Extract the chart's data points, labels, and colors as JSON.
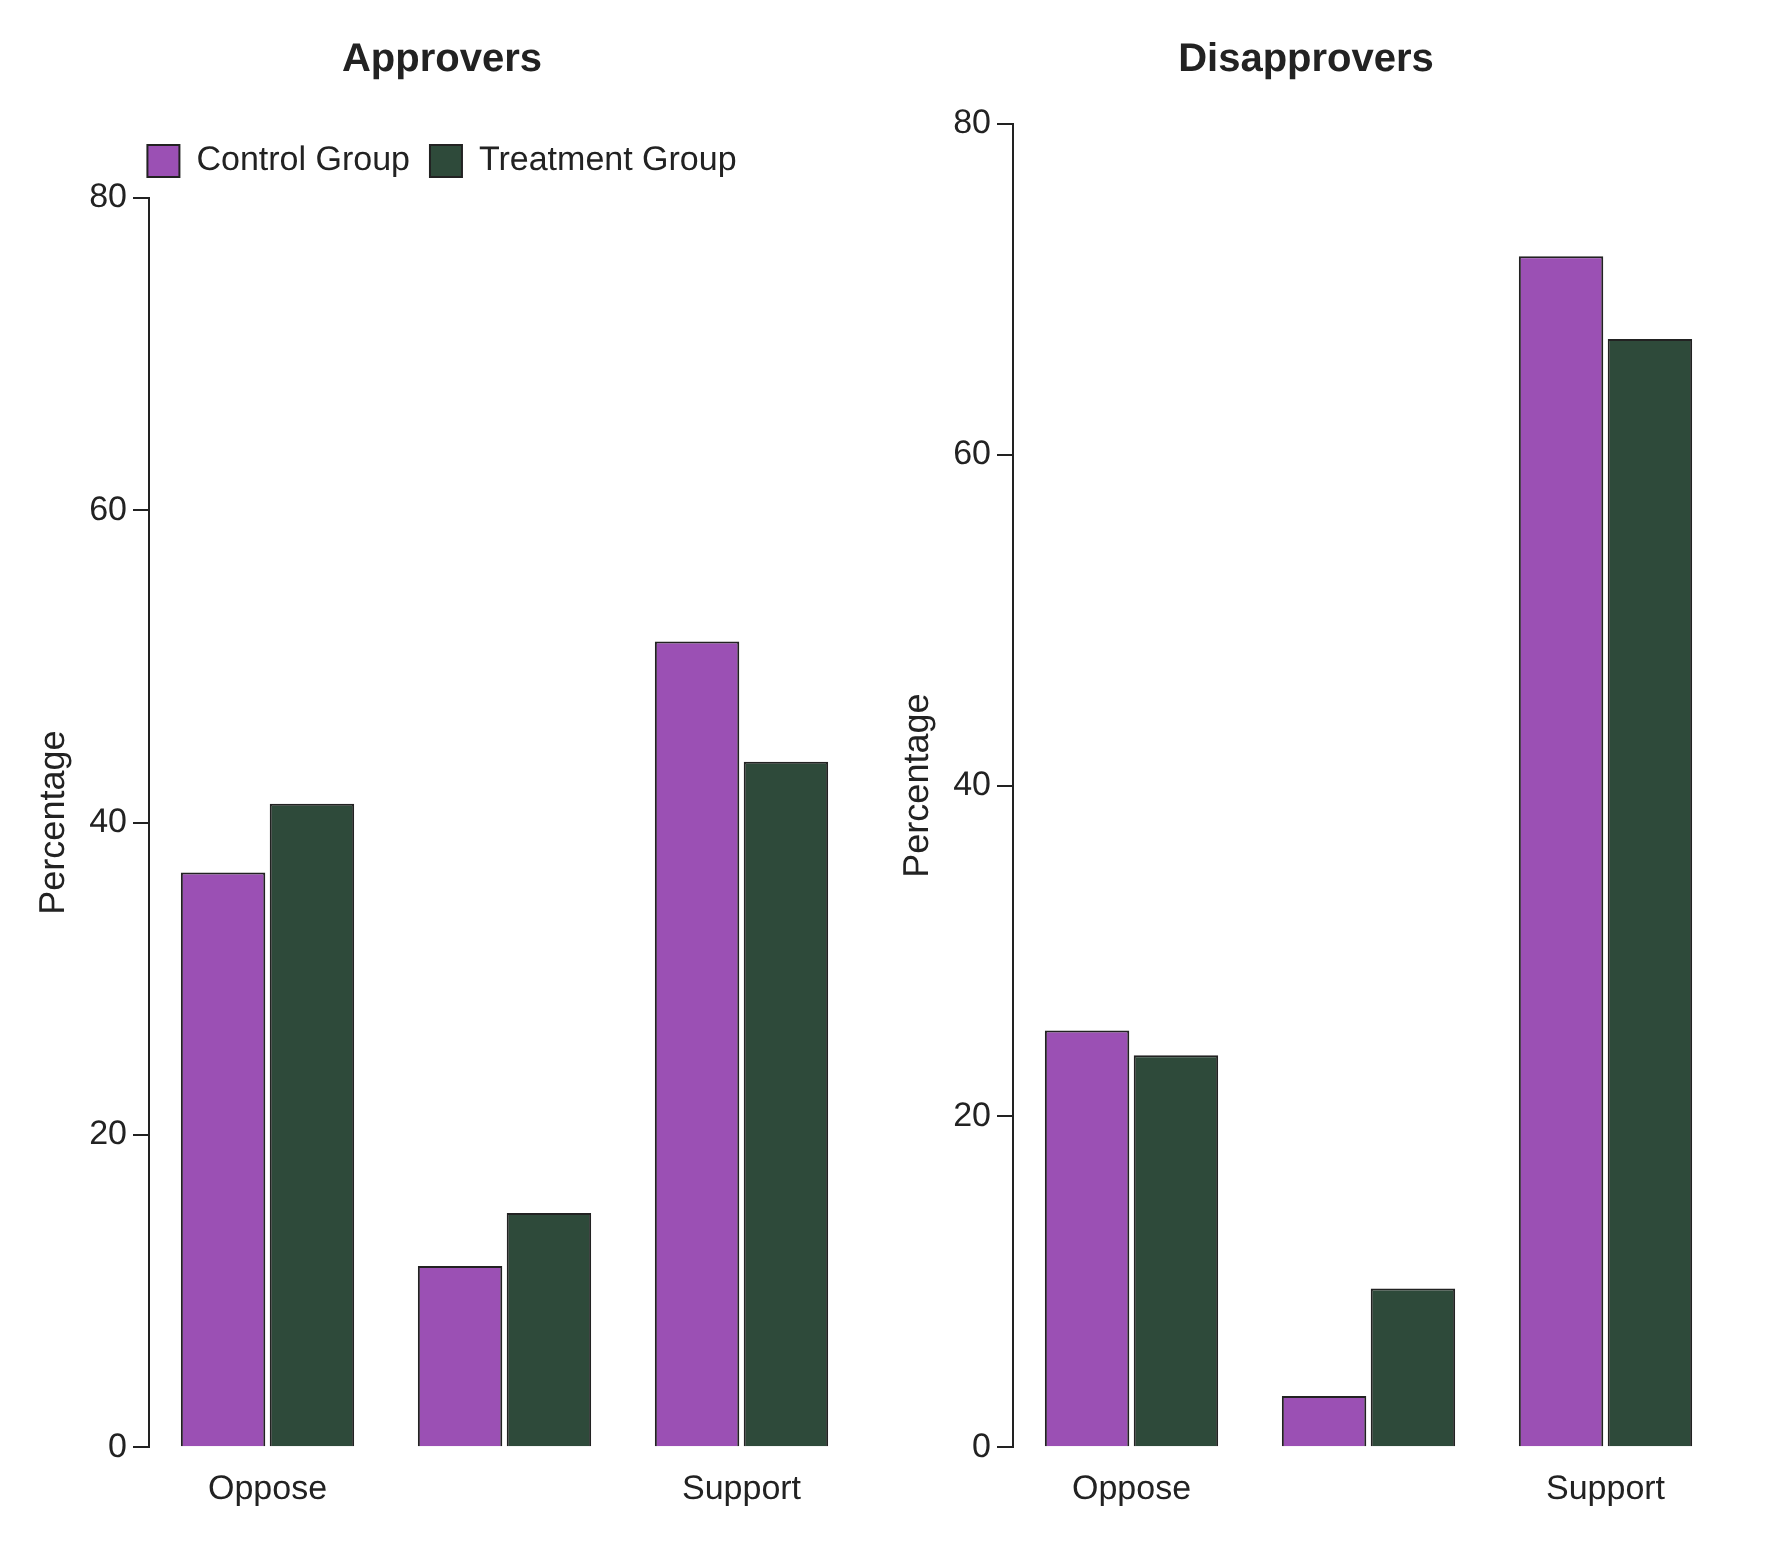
{
  "chart_data": [
    {
      "type": "bar",
      "title": "Approvers",
      "ylabel": "Percentage",
      "categories": [
        "Oppose",
        null,
        "Support"
      ],
      "ylim": [
        0,
        80
      ],
      "yticks": [
        0,
        20,
        40,
        60,
        80
      ],
      "grid": false,
      "legend": "top",
      "series": [
        {
          "name": "Control Group",
          "color": "#9b50b4",
          "values": [
            36.8,
            11.6,
            51.6
          ]
        },
        {
          "name": "Treatment Group",
          "color": "#2e4a3a",
          "values": [
            41.2,
            15.0,
            43.9
          ]
        }
      ]
    },
    {
      "type": "bar",
      "title": "Disapprovers",
      "ylabel": "Percentage",
      "categories": [
        "Oppose",
        null,
        "Support"
      ],
      "ylim": [
        0,
        80
      ],
      "yticks": [
        0,
        20,
        40,
        60,
        80
      ],
      "grid": false,
      "legend": false,
      "series": [
        {
          "color": "#9b50b4",
          "values": [
            25.2,
            3.1,
            72.0
          ]
        },
        {
          "color": "#2e4a3a",
          "values": [
            23.7,
            9.6,
            67.0
          ]
        }
      ]
    }
  ]
}
